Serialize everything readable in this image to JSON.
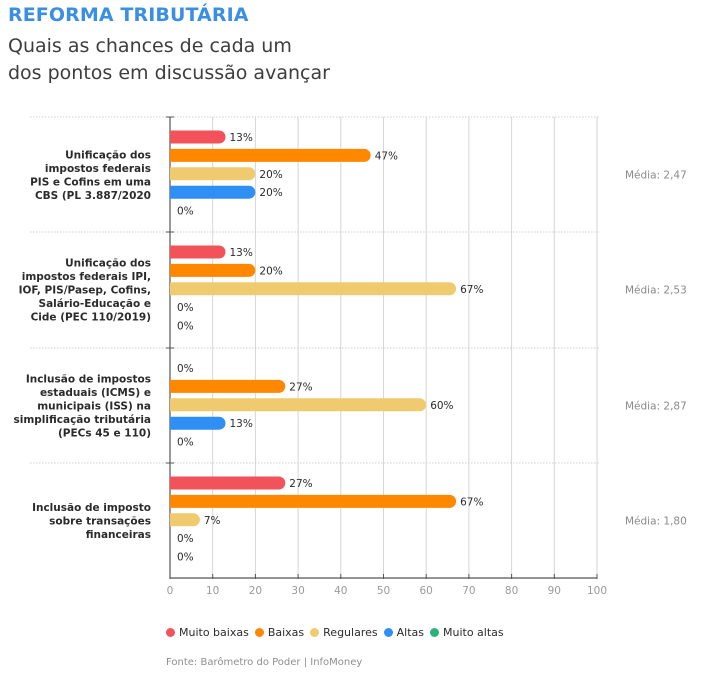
{
  "header": {
    "kicker": "REFORMA TRIBUTÁRIA",
    "subtitle_lines": [
      "Quais as chances de cada um",
      "dos pontos em discussão avançar"
    ]
  },
  "source": "Fonte: Barômetro do Poder | InfoMoney",
  "colors": {
    "Muito baixas": "#f2525a",
    "Baixas": "#ff8800",
    "Regulares": "#efca6e",
    "Altas": "#2f8ff5",
    "Muito altas": "#2db37a"
  },
  "chart_data": {
    "type": "bar",
    "orientation": "horizontal",
    "title": "REFORMA TRIBUTÁRIA",
    "subtitle": "Quais as chances de cada um dos pontos em discussão avançar",
    "xlabel": "",
    "ylabel": "",
    "xlim": [
      0,
      100
    ],
    "xticks": [
      0,
      10,
      20,
      30,
      40,
      50,
      60,
      70,
      80,
      90,
      100
    ],
    "grid": "vertical",
    "legend_position": "bottom",
    "value_suffix": "%",
    "categories": [
      {
        "label_lines": [
          "Unificação dos",
          "impostos federais",
          "PIS e Cofins em uma",
          "CBS (PL 3.887/2020"
        ],
        "mean_label": "Média: 2,47"
      },
      {
        "label_lines": [
          "Unificação dos",
          "impostos federais IPI,",
          "IOF, PIS/Pasep, Cofins,",
          "Salário-Educação e",
          "Cide (PEC 110/2019)"
        ],
        "mean_label": "Média: 2,53"
      },
      {
        "label_lines": [
          "Inclusão de impostos",
          "estaduais (ICMS) e",
          "municipais (ISS) na",
          "simplificação tributária",
          "(PECs 45 e 110)"
        ],
        "mean_label": "Média: 2,87"
      },
      {
        "label_lines": [
          "Inclusão de imposto",
          "sobre transações",
          "financeiras"
        ],
        "mean_label": "Média: 1,80"
      }
    ],
    "series": [
      {
        "name": "Muito baixas",
        "values": [
          13,
          13,
          0,
          27
        ]
      },
      {
        "name": "Baixas",
        "values": [
          47,
          20,
          27,
          67
        ]
      },
      {
        "name": "Regulares",
        "values": [
          20,
          67,
          60,
          7
        ]
      },
      {
        "name": "Altas",
        "values": [
          20,
          0,
          13,
          0
        ]
      },
      {
        "name": "Muito altas",
        "values": [
          0,
          0,
          0,
          0
        ]
      }
    ]
  }
}
